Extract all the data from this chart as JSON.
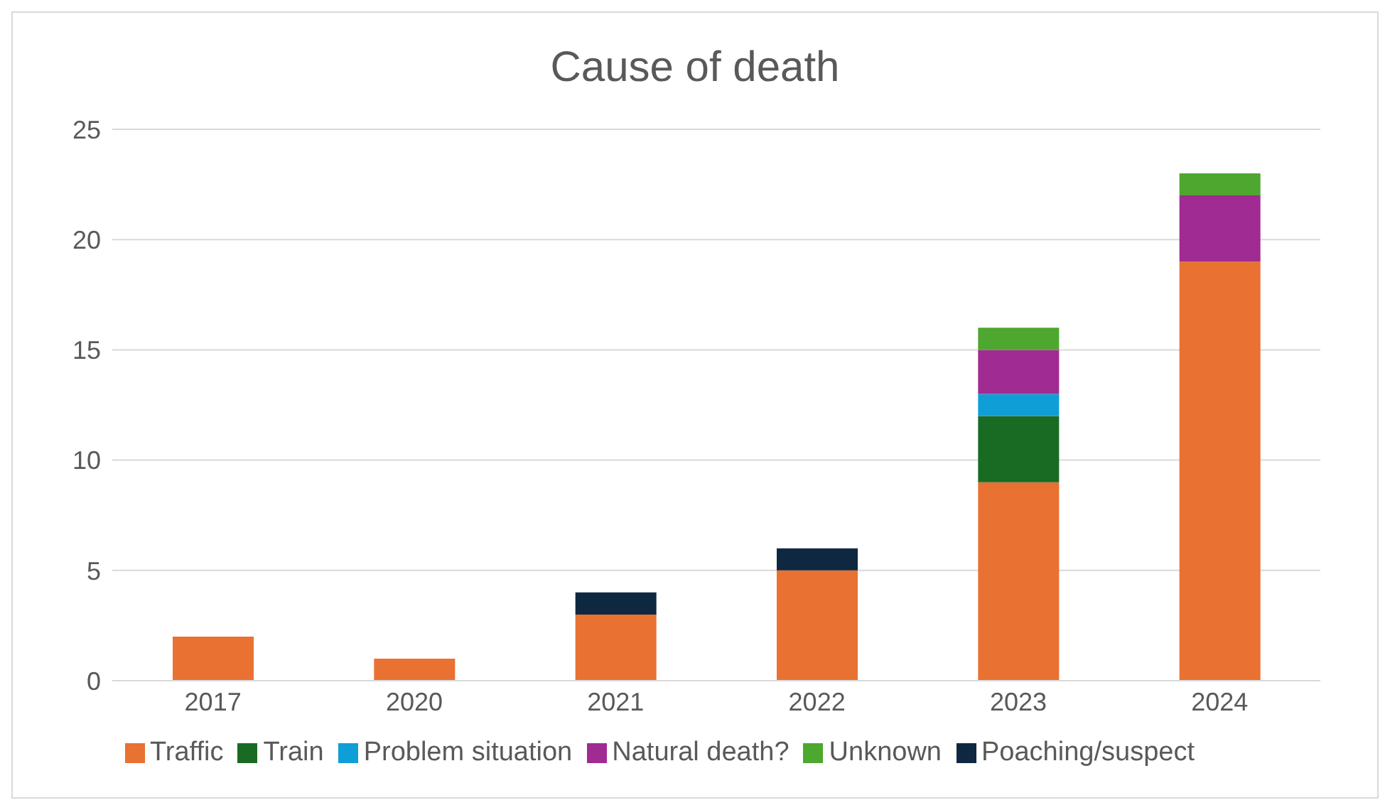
{
  "chart_data": {
    "type": "bar",
    "title": "Cause of death",
    "stacked": true,
    "categories": [
      "2017",
      "2020",
      "2021",
      "2022",
      "2023",
      "2024"
    ],
    "series": [
      {
        "name": "Traffic",
        "color": "#e97132",
        "values": [
          2,
          1,
          3,
          5,
          9,
          19
        ]
      },
      {
        "name": "Train",
        "color": "#196b24",
        "values": [
          null,
          null,
          null,
          null,
          3,
          null
        ]
      },
      {
        "name": "Problem situation",
        "color": "#0f9ed5",
        "values": [
          null,
          null,
          null,
          null,
          1,
          null
        ]
      },
      {
        "name": "Natural death?",
        "color": "#a02b93",
        "values": [
          null,
          null,
          null,
          null,
          2,
          3
        ]
      },
      {
        "name": "Unknown",
        "color": "#4ea72e",
        "values": [
          null,
          null,
          null,
          null,
          1,
          1
        ]
      },
      {
        "name": "Poaching/suspect",
        "color": "#0e2841",
        "values": [
          null,
          null,
          1,
          1,
          null,
          null
        ]
      }
    ],
    "ylim": [
      0,
      25
    ],
    "yticks": [
      0,
      5,
      10,
      15,
      20,
      25
    ],
    "grid": "y",
    "legend": "bottom"
  }
}
